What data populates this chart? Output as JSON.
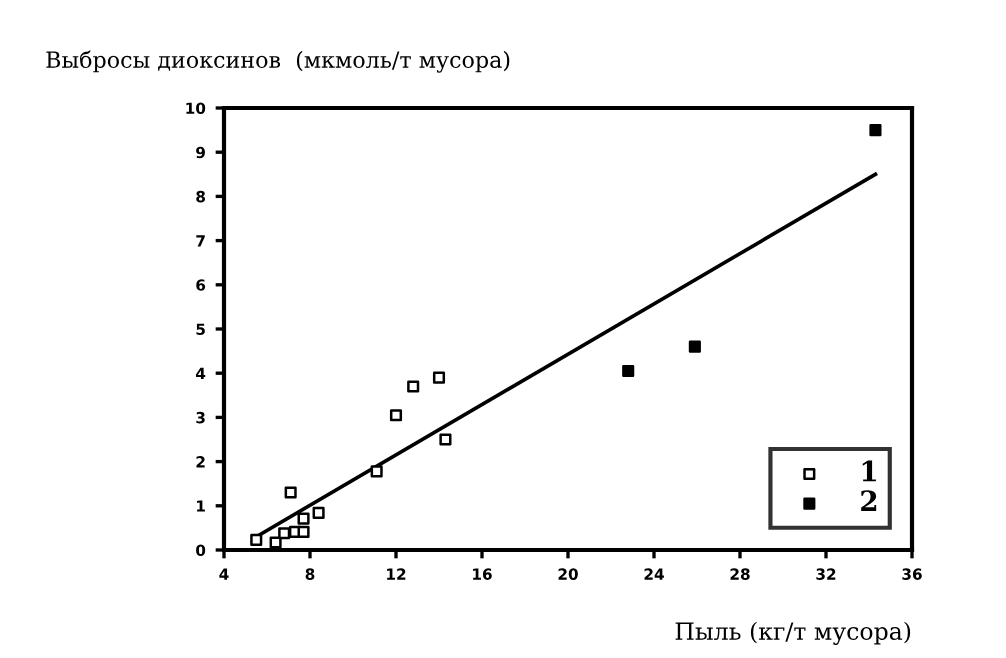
{
  "chart_data": {
    "type": "scatter",
    "ylabel": "Выбросы диоксинов  (мкмоль/т мусора)",
    "xlabel": "Пыль (кг/т мусора)",
    "series": [
      {
        "name": "1",
        "color": "#ffffff",
        "marker": "square",
        "x": [
          5.5,
          6.4,
          6.8,
          7.3,
          7.1,
          7.7,
          7.7,
          8.4,
          11.1,
          12.0,
          12.8,
          14.0,
          14.3
        ],
        "values": [
          0.23,
          0.17,
          0.38,
          0.41,
          1.3,
          0.41,
          0.71,
          0.84,
          1.78,
          3.05,
          3.7,
          3.9,
          2.5
        ]
      },
      {
        "name": "2",
        "color": "#000000",
        "marker": "square",
        "x": [
          22.8,
          25.9,
          34.3
        ],
        "values": [
          4.05,
          4.6,
          9.5
        ]
      },
      {
        "type": "line",
        "color": "#000000",
        "marker": "none",
        "x": [
          5.5,
          34.3
        ],
        "values": [
          0.3,
          8.5
        ]
      }
    ],
    "xlim": [
      4,
      36
    ],
    "ylim": [
      0,
      10
    ],
    "xticks": [
      4,
      8,
      12,
      16,
      20,
      24,
      28,
      32,
      36
    ],
    "yticks": [
      0,
      1,
      2,
      3,
      4,
      5,
      6,
      7,
      8,
      9,
      10
    ],
    "grid": false,
    "legend": "bottom right"
  }
}
